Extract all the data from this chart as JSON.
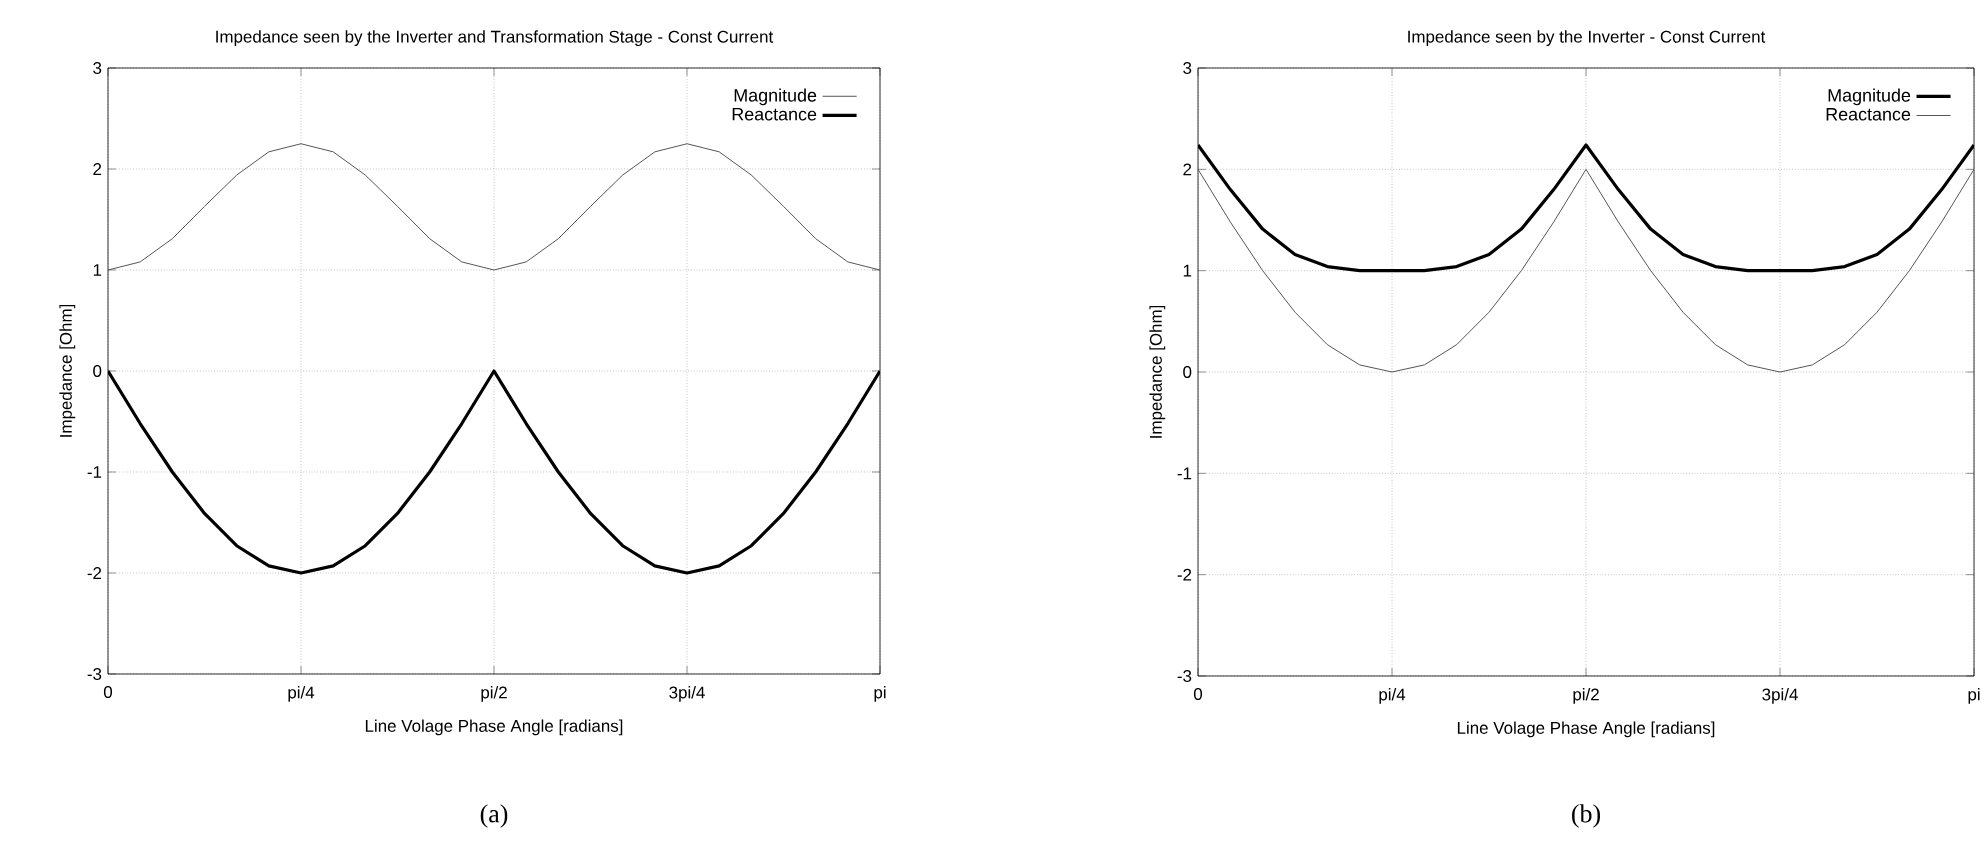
{
  "chart_data": [
    {
      "type": "line",
      "title": "Impedance seen by the Inverter and Transformation Stage - Const Current",
      "xlabel": "Line Volage Phase Angle [radians]",
      "ylabel": "Impedance [Ohm]",
      "categories": [
        "0",
        null,
        null,
        null,
        null,
        null,
        "pi/4",
        null,
        null,
        null,
        null,
        null,
        "pi/2",
        null,
        null,
        null,
        null,
        null,
        "3pi/4",
        null,
        null,
        null,
        null,
        null,
        "pi"
      ],
      "series": [
        {
          "name": "Magnitude",
          "color": "#555555",
          "values": [
            1,
            1.08,
            1.31,
            1.63,
            1.94,
            2.17,
            2.25,
            2.17,
            1.94,
            1.63,
            1.31,
            1.08,
            1,
            1.08,
            1.31,
            1.63,
            1.94,
            2.17,
            2.25,
            2.17,
            1.94,
            1.63,
            1.31,
            1.08,
            1
          ]
        },
        {
          "name": "Reactance",
          "color": "#000000",
          "values": [
            0,
            -0.52,
            -1,
            -1.41,
            -1.73,
            -1.93,
            -2,
            -1.93,
            -1.73,
            -1.41,
            -1,
            -0.52,
            0,
            -0.52,
            -1,
            -1.41,
            -1.73,
            -1.93,
            -2,
            -1.93,
            -1.73,
            -1.41,
            -1,
            -0.52,
            0
          ]
        }
      ],
      "ylim": [
        -3,
        3
      ],
      "yticks": [
        -3,
        -2,
        -1,
        0,
        1,
        2,
        3
      ],
      "grid": true,
      "legend": "top right",
      "annotations": [
        "(a)"
      ]
    },
    {
      "type": "line",
      "title": "Impedance seen by the Inverter - Const Current",
      "xlabel": "Line Volage Phase Angle [radians]",
      "ylabel": "Impedance [Ohm]",
      "categories": [
        "0",
        null,
        null,
        null,
        null,
        null,
        "pi/4",
        null,
        null,
        null,
        null,
        null,
        "pi/2",
        null,
        null,
        null,
        null,
        null,
        "3pi/4",
        null,
        null,
        null,
        null,
        null,
        "pi"
      ],
      "series": [
        {
          "name": "Magnitude",
          "color": "#000000",
          "values": [
            2.24,
            1.8,
            1.41,
            1.16,
            1.04,
            1,
            1,
            1,
            1.04,
            1.16,
            1.41,
            1.8,
            2.24,
            1.8,
            1.41,
            1.16,
            1.04,
            1,
            1,
            1,
            1.04,
            1.16,
            1.41,
            1.8,
            2.24
          ]
        },
        {
          "name": "Reactance",
          "color": "#555555",
          "values": [
            2,
            1.48,
            1,
            0.59,
            0.27,
            0.07,
            0,
            0.07,
            0.27,
            0.59,
            1,
            1.48,
            2,
            1.48,
            1,
            0.59,
            0.27,
            0.07,
            0,
            0.07,
            0.27,
            0.59,
            1,
            1.48,
            2
          ]
        }
      ],
      "ylim": [
        -3,
        3
      ],
      "yticks": [
        -3,
        -2,
        -1,
        0,
        1,
        2,
        3
      ],
      "grid": true,
      "legend": "top right",
      "annotations": [
        "(b)"
      ]
    }
  ]
}
